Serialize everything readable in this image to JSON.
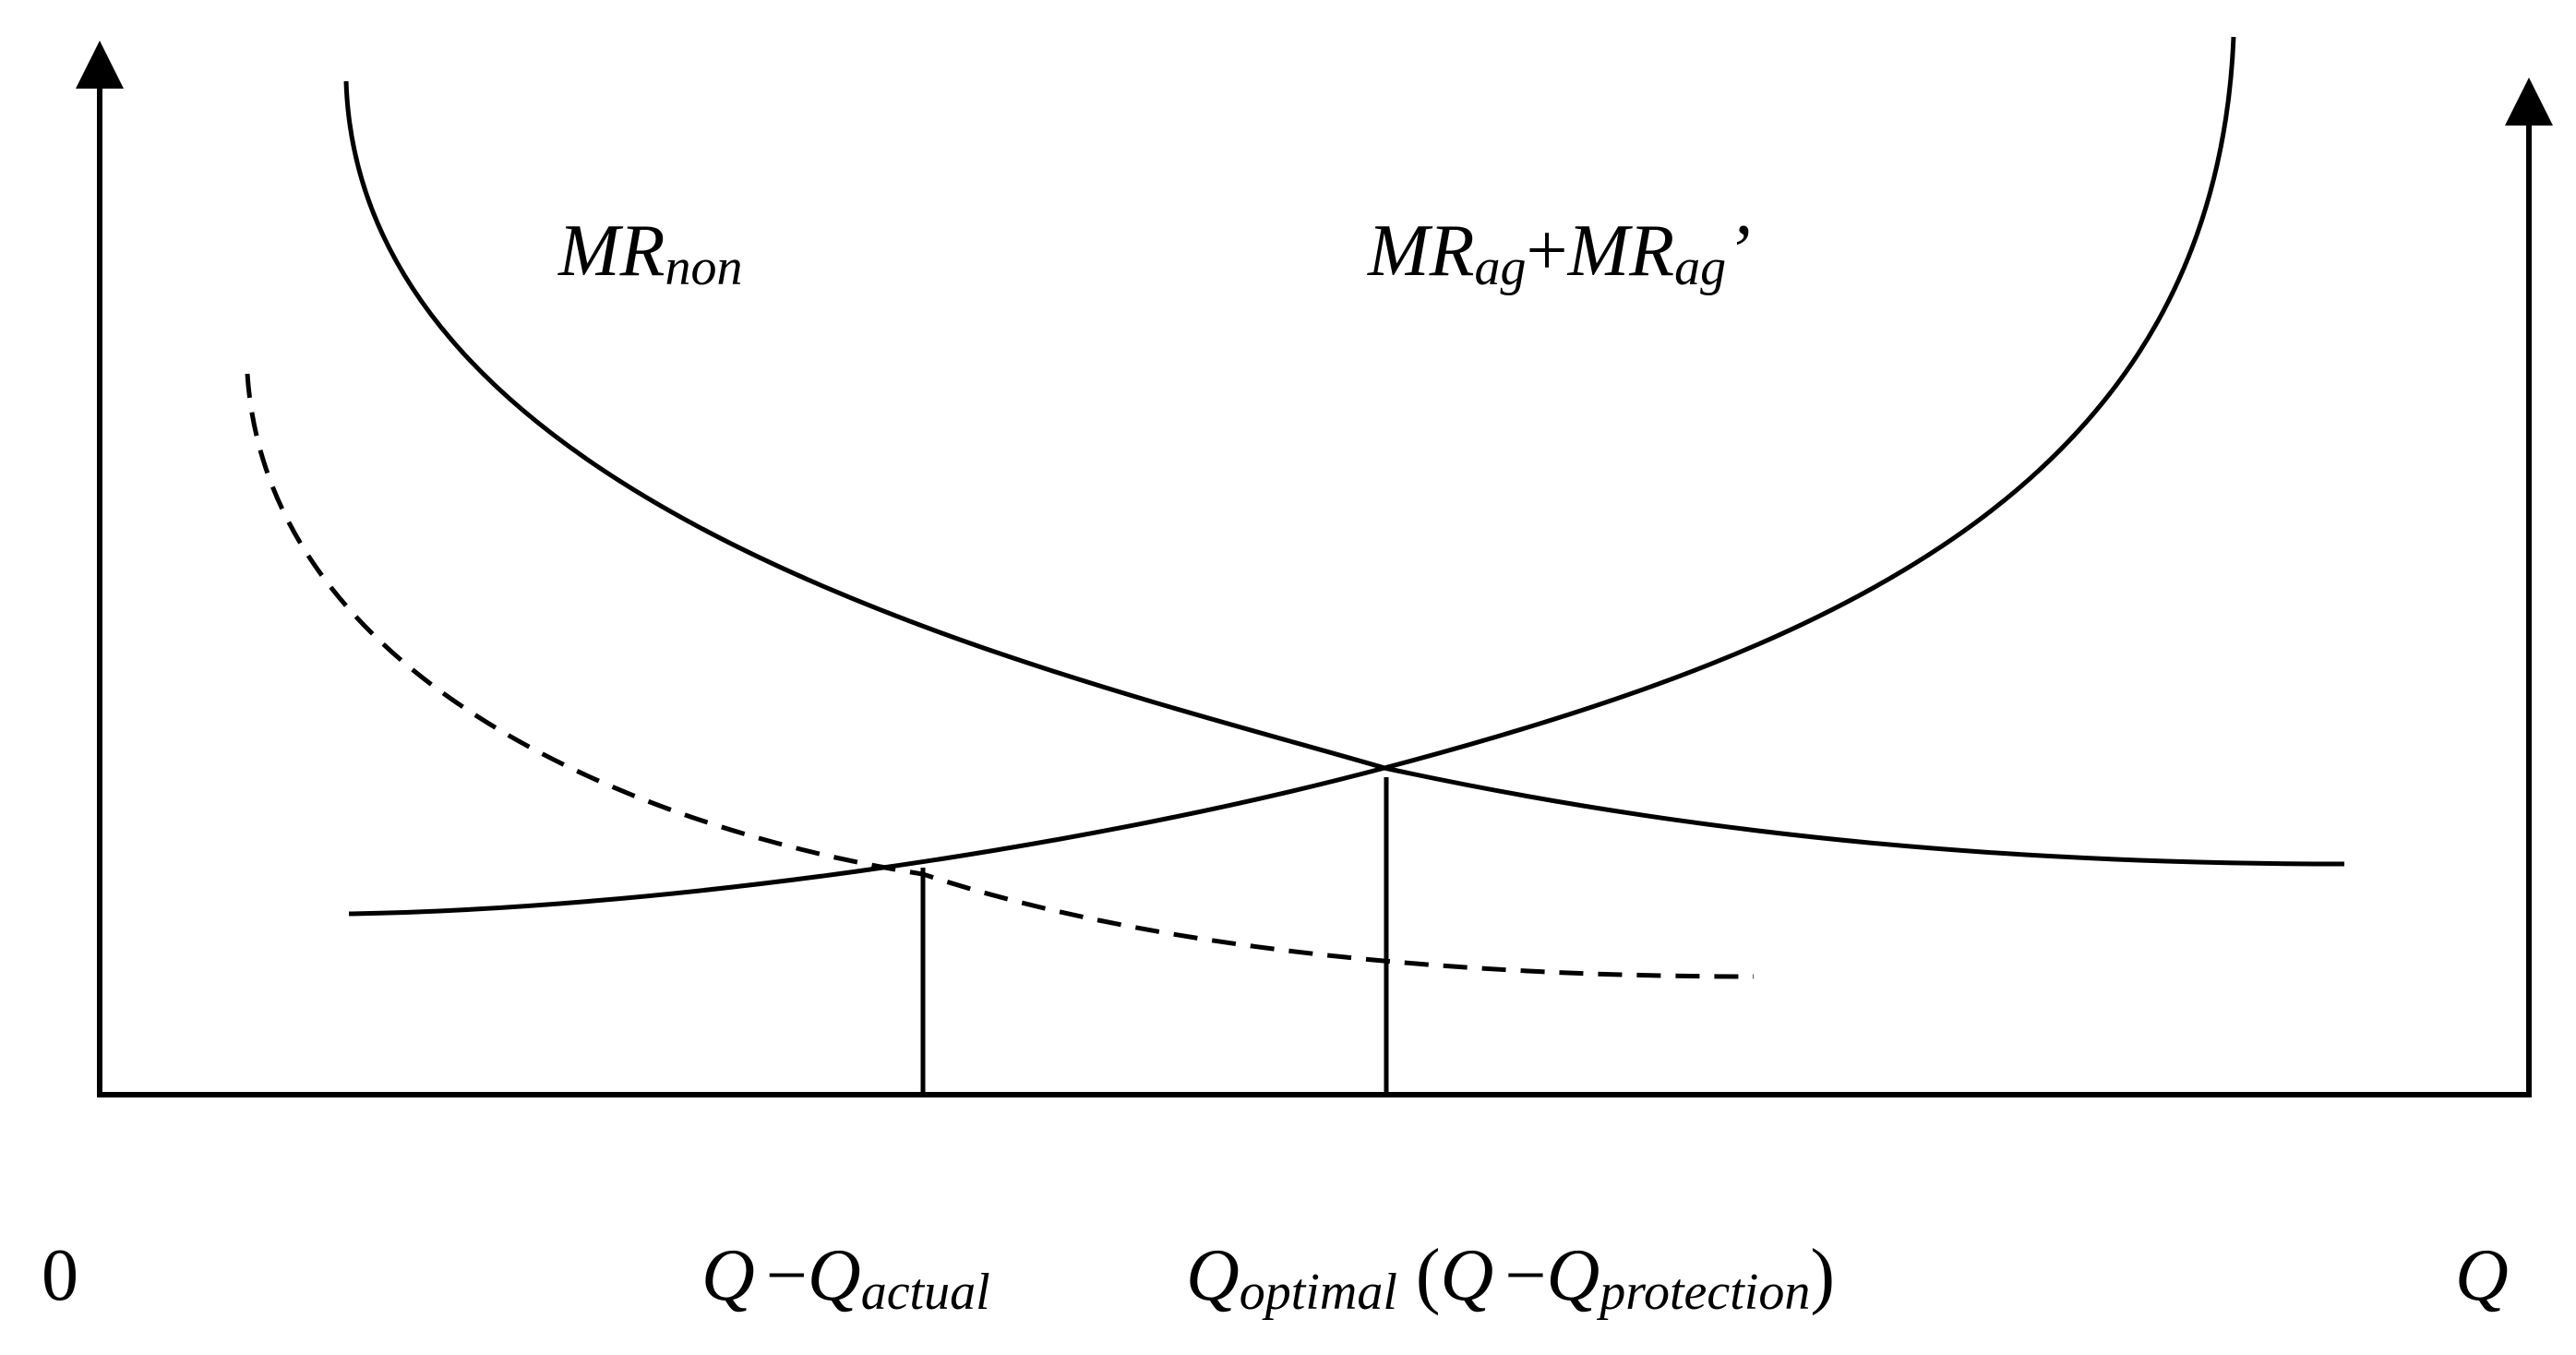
{
  "diagram": {
    "origin_label": "0",
    "q_axis_label": "Q",
    "curves": {
      "mr_non": {
        "main": "MR",
        "sub": "non"
      },
      "mr_ag": {
        "main1": "MR",
        "sub1": "ag",
        "plus": "+",
        "main2": "MR",
        "sub2": "ag",
        "prime": "’"
      }
    },
    "x_labels": {
      "q_actual": {
        "lead": "Q",
        "dash": "−",
        "main": "Q",
        "sub": "actual"
      },
      "q_optimal": {
        "main": "Q",
        "sub": "optimal",
        "open": " (",
        "inner_lead": "Q",
        "dash": "−",
        "inner_main": "Q",
        "inner_sub": "protection",
        "close": ")"
      }
    }
  }
}
